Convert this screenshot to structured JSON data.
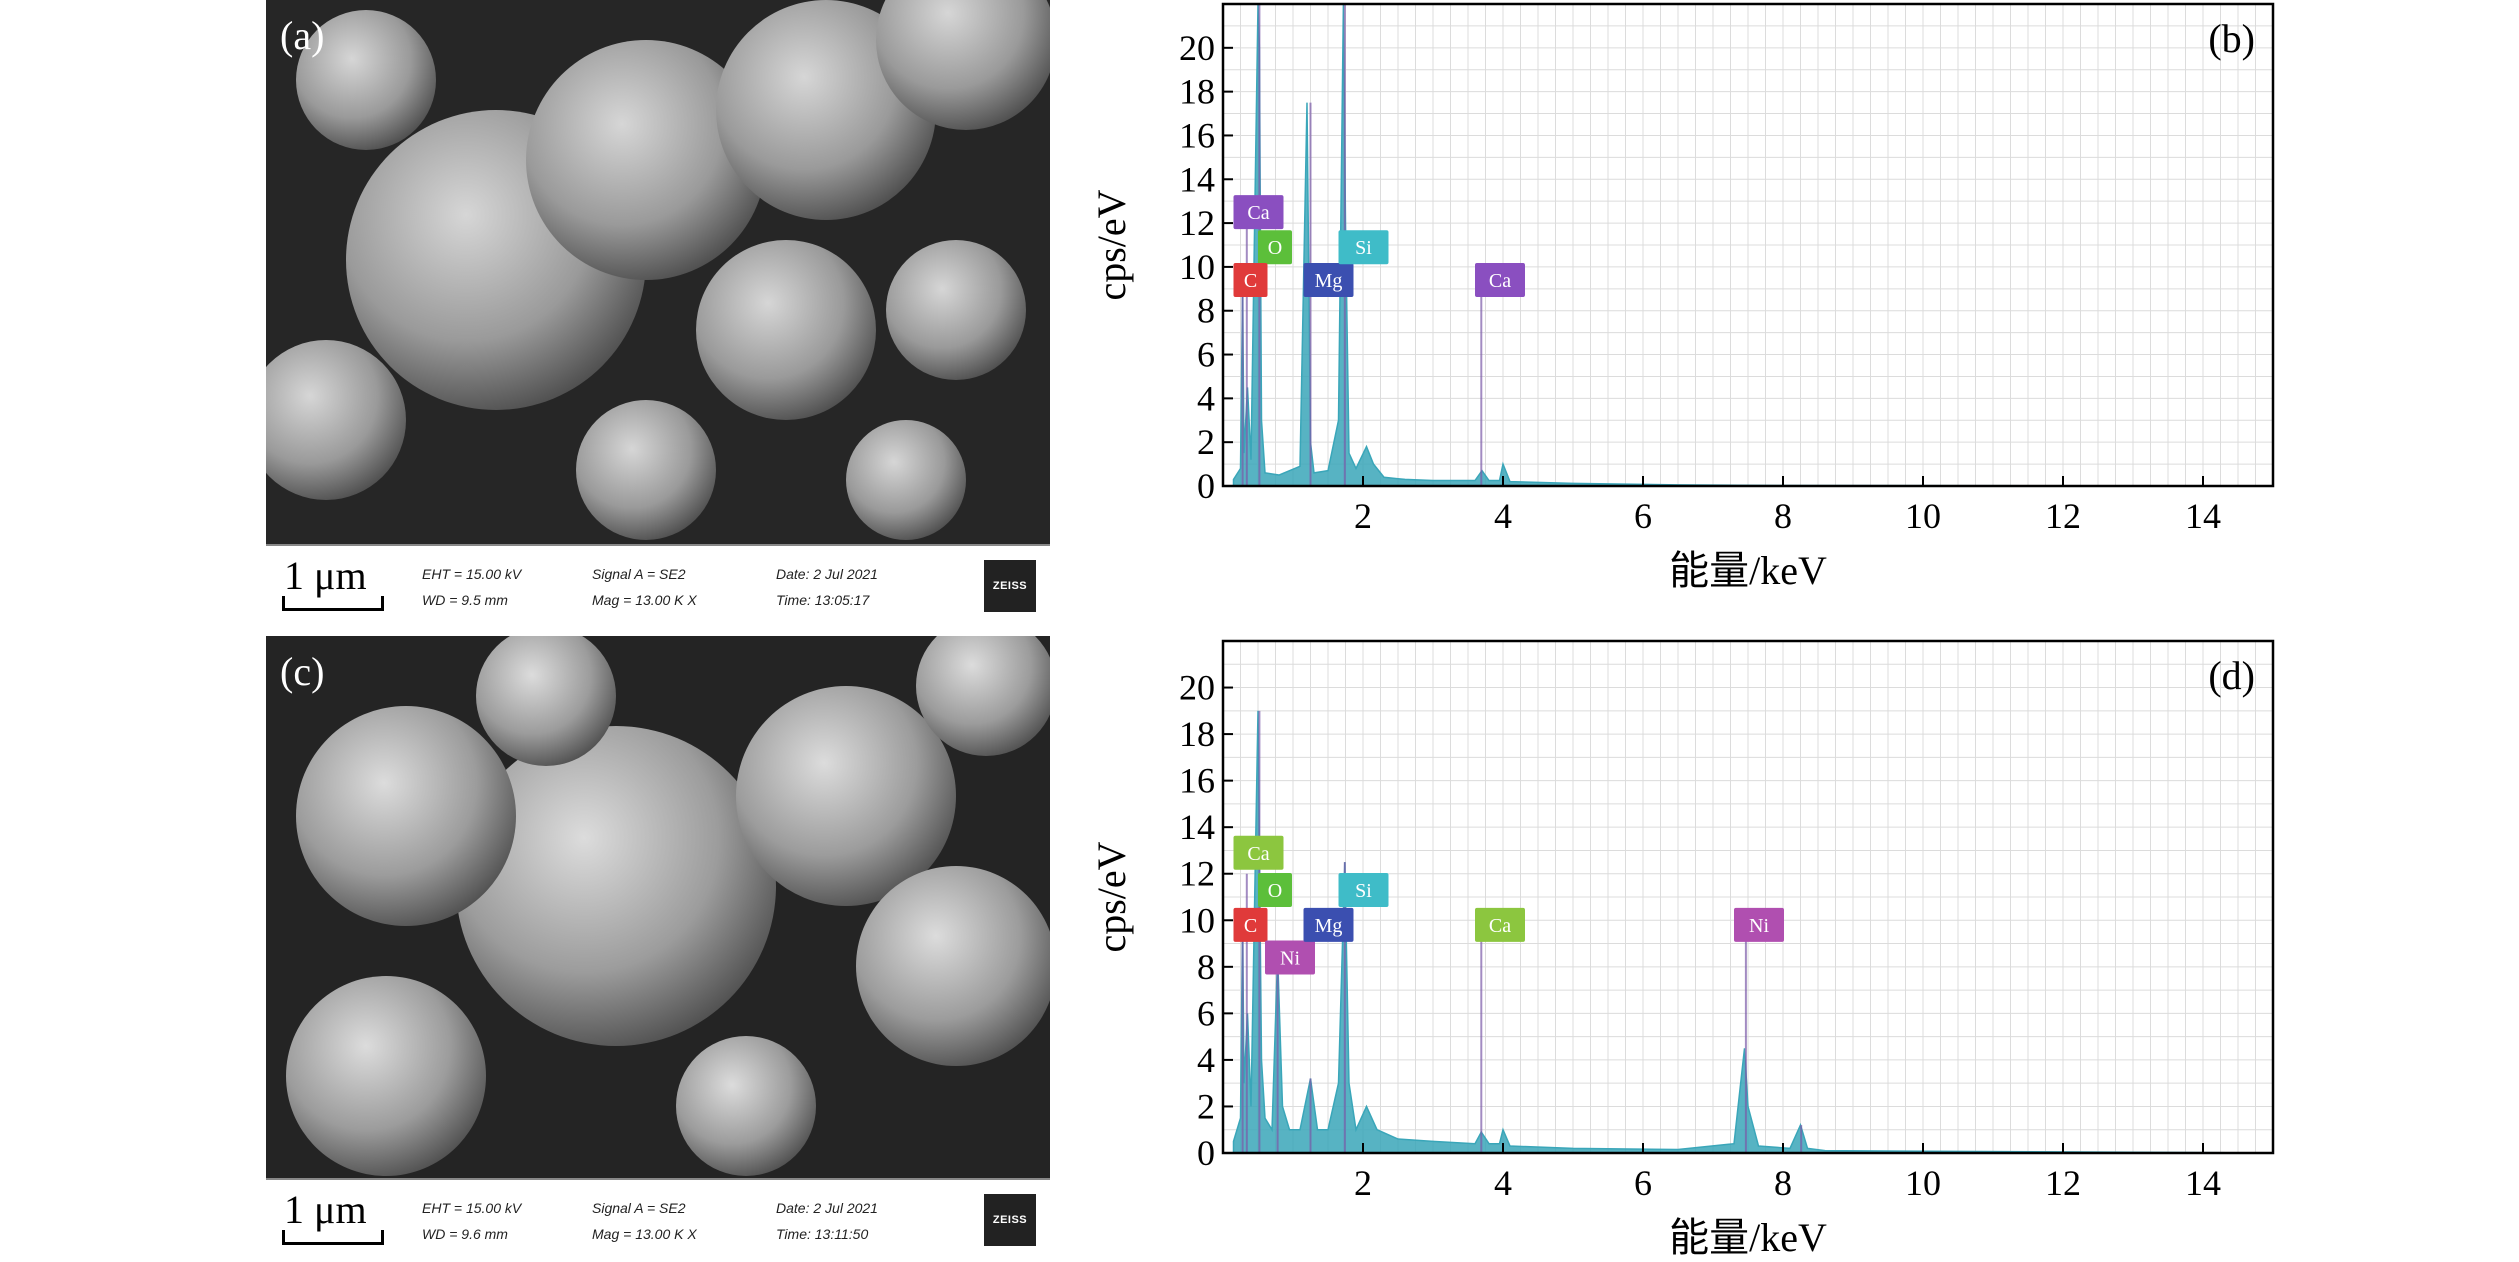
{
  "sem_panels": [
    {
      "label": "(a)",
      "scale_text": "1 μm",
      "eht": "EHT = 15.00 kV",
      "wd": "WD = 9.5 mm",
      "signal": "Signal A = SE2",
      "mag": "Mag = 13.00 K X",
      "date": "Date: 2 Jul 2021",
      "time": "Time: 13:05:17",
      "logo": "ZEISS"
    },
    {
      "label": "(c)",
      "scale_text": "1 μm",
      "eht": "EHT = 15.00 kV",
      "wd": "WD = 9.6 mm",
      "signal": "Signal A = SE2",
      "mag": "Mag = 13.00 K X",
      "date": "Date: 2 Jul 2021",
      "time": "Time: 13:11:50",
      "logo": "ZEISS"
    }
  ],
  "colors": {
    "spectrum_fill": "#3aa6b9",
    "C": "#e03a3a",
    "O": "#5cbf3a",
    "Ca_purple": "#8a4fc0",
    "Ca_green": "#8cc63f",
    "Mg": "#3b4fb0",
    "Si": "#3fbcc8",
    "Ni": "#b04fb0"
  },
  "chart_data": [
    {
      "panel": "(b)",
      "type": "area",
      "xlabel": "能量/keV",
      "ylabel": "cps/eV",
      "xlim": [
        0,
        15
      ],
      "ylim": [
        0,
        22
      ],
      "xticks": [
        2,
        4,
        6,
        8,
        10,
        12,
        14
      ],
      "yticks": [
        0,
        2,
        4,
        6,
        8,
        10,
        12,
        14,
        16,
        18,
        20
      ],
      "grid": true,
      "x": [
        0.15,
        0.25,
        0.28,
        0.3,
        0.35,
        0.4,
        0.5,
        0.52,
        0.55,
        0.6,
        0.8,
        1.1,
        1.2,
        1.25,
        1.3,
        1.5,
        1.65,
        1.72,
        1.75,
        1.8,
        1.9,
        2.05,
        2.15,
        2.3,
        2.6,
        3.0,
        3.6,
        3.7,
        3.8,
        3.95,
        4.0,
        4.1,
        5.0,
        6.5,
        8.0,
        15.0
      ],
      "y": [
        0.3,
        0.8,
        9.0,
        1.5,
        4.5,
        1.2,
        22.0,
        20.0,
        3.0,
        0.6,
        0.5,
        0.9,
        17.5,
        2.0,
        0.6,
        0.7,
        3.0,
        22.0,
        12.0,
        1.5,
        0.8,
        1.8,
        1.0,
        0.4,
        0.3,
        0.25,
        0.25,
        0.7,
        0.25,
        0.25,
        1.0,
        0.2,
        0.12,
        0.05,
        0.02,
        0.0
      ],
      "peaks": [
        {
          "element": "C",
          "energy": 0.28,
          "height": 9.0
        },
        {
          "element": "Ca",
          "energy": 0.34,
          "height": 12.0
        },
        {
          "element": "O",
          "energy": 0.52,
          "height": 22.0
        },
        {
          "element": "Mg",
          "energy": 1.25,
          "height": 17.5
        },
        {
          "element": "Si",
          "energy": 1.74,
          "height": 22.0
        },
        {
          "element": "Ca",
          "energy": 3.69,
          "height": 9.0
        }
      ],
      "tags": [
        {
          "text": "Ca",
          "x": 0.15,
          "y": 12.5,
          "color": "Ca_purple"
        },
        {
          "text": "O",
          "x": 0.5,
          "y": 10.9,
          "color": "O"
        },
        {
          "text": "C",
          "x": 0.15,
          "y": 9.4,
          "color": "C"
        },
        {
          "text": "Mg",
          "x": 1.15,
          "y": 9.4,
          "color": "Mg"
        },
        {
          "text": "Si",
          "x": 1.65,
          "y": 10.9,
          "color": "Si"
        },
        {
          "text": "Ca",
          "x": 3.6,
          "y": 9.4,
          "color": "Ca_purple"
        }
      ]
    },
    {
      "panel": "(d)",
      "type": "area",
      "xlabel": "能量/keV",
      "ylabel": "cps/eV",
      "xlim": [
        0,
        15
      ],
      "ylim": [
        0,
        22
      ],
      "xticks": [
        2,
        4,
        6,
        8,
        10,
        12,
        14
      ],
      "yticks": [
        0,
        2,
        4,
        6,
        8,
        10,
        12,
        14,
        16,
        18,
        20
      ],
      "grid": true,
      "x": [
        0.15,
        0.25,
        0.28,
        0.3,
        0.35,
        0.4,
        0.5,
        0.55,
        0.6,
        0.7,
        0.78,
        0.85,
        0.95,
        1.1,
        1.25,
        1.35,
        1.5,
        1.65,
        1.74,
        1.8,
        1.9,
        2.05,
        2.2,
        2.5,
        3.0,
        3.6,
        3.69,
        3.8,
        3.95,
        4.0,
        4.1,
        5.0,
        6.5,
        7.3,
        7.45,
        7.5,
        7.65,
        8.1,
        8.25,
        8.35,
        8.6,
        15.0
      ],
      "y": [
        0.5,
        1.5,
        10.0,
        3.0,
        6.0,
        2.0,
        19.0,
        4.0,
        1.5,
        1.0,
        8.5,
        2.0,
        1.0,
        1.0,
        3.2,
        1.0,
        1.0,
        3.0,
        12.5,
        3.0,
        1.0,
        2.0,
        1.0,
        0.6,
        0.5,
        0.4,
        0.9,
        0.4,
        0.4,
        1.0,
        0.3,
        0.2,
        0.15,
        0.4,
        4.5,
        2.0,
        0.3,
        0.2,
        1.2,
        0.2,
        0.1,
        0.0
      ],
      "peaks": [
        {
          "element": "C",
          "energy": 0.28,
          "height": 10.0
        },
        {
          "element": "Ca",
          "energy": 0.34,
          "height": 12.0
        },
        {
          "element": "O",
          "energy": 0.52,
          "height": 19.0
        },
        {
          "element": "Ni",
          "energy": 0.78,
          "height": 8.5
        },
        {
          "element": "Mg",
          "energy": 1.25,
          "height": 3.2
        },
        {
          "element": "Si",
          "energy": 1.74,
          "height": 12.5
        },
        {
          "element": "Ca",
          "energy": 3.69,
          "height": 9.5
        },
        {
          "element": "Ni",
          "energy": 7.47,
          "height": 9.5
        },
        {
          "element": "Ni",
          "energy": 8.26,
          "height": 1.2
        }
      ],
      "tags": [
        {
          "text": "Ca",
          "x": 0.15,
          "y": 12.9,
          "color": "Ca_green"
        },
        {
          "text": "O",
          "x": 0.5,
          "y": 11.3,
          "color": "O"
        },
        {
          "text": "C",
          "x": 0.15,
          "y": 9.8,
          "color": "C"
        },
        {
          "text": "Ni",
          "x": 0.6,
          "y": 8.4,
          "color": "Ni"
        },
        {
          "text": "Mg",
          "x": 1.15,
          "y": 9.8,
          "color": "Mg"
        },
        {
          "text": "Si",
          "x": 1.65,
          "y": 11.3,
          "color": "Si"
        },
        {
          "text": "Ca",
          "x": 3.6,
          "y": 9.8,
          "color": "Ca_green"
        },
        {
          "text": "Ni",
          "x": 7.3,
          "y": 9.8,
          "color": "Ni"
        }
      ]
    }
  ]
}
